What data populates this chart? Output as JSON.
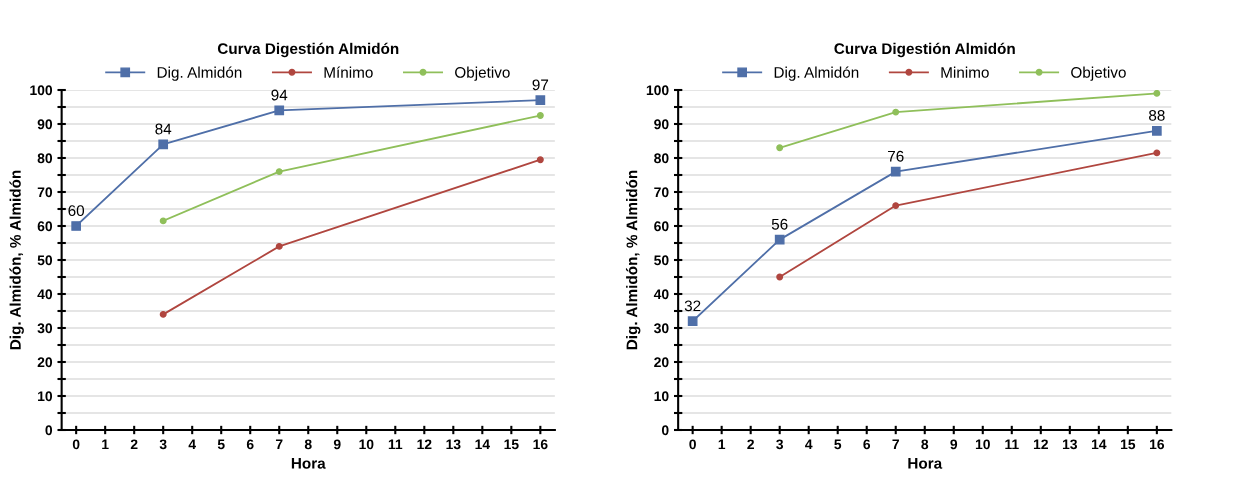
{
  "chart_data": [
    {
      "type": "line",
      "title": "Curva Digestión Almidón",
      "xlabel": "Hora",
      "ylabel": "Dig. Almidón, % Almidón",
      "categories": [
        "0",
        "1",
        "2",
        "3",
        "4",
        "5",
        "6",
        "7",
        "8",
        "9",
        "10",
        "11",
        "12",
        "13",
        "14",
        "15",
        "16"
      ],
      "ylim": [
        0,
        100
      ],
      "yticks": [
        0,
        {
          "value": 5,
          "label": null
        },
        10,
        {
          "value": 15,
          "label": null
        },
        20,
        {
          "value": 25,
          "label": null
        },
        30,
        {
          "value": 35,
          "label": null
        },
        40,
        {
          "value": 45,
          "label": null
        },
        50,
        {
          "value": 55,
          "label": null
        },
        60,
        {
          "value": 65,
          "label": null
        },
        70,
        {
          "value": 75,
          "label": null
        },
        80,
        {
          "value": 85,
          "label": null
        },
        90,
        {
          "value": 95,
          "label": null
        },
        100
      ],
      "grid": "y",
      "legend": "top",
      "series": [
        {
          "name": "Dig. Almidón",
          "color": "#4f6fa8",
          "marker": "square",
          "values": [
            60,
            null,
            null,
            84,
            null,
            null,
            null,
            94,
            null,
            null,
            null,
            null,
            null,
            null,
            null,
            null,
            97
          ],
          "value_labels": [
            "60",
            null,
            null,
            "84",
            null,
            null,
            null,
            "94",
            null,
            null,
            null,
            null,
            null,
            null,
            null,
            null,
            "97"
          ]
        },
        {
          "name": "Mínimo",
          "color": "#b0463f",
          "marker": "circle",
          "values": [
            null,
            null,
            null,
            34,
            null,
            null,
            null,
            54,
            null,
            null,
            null,
            null,
            null,
            null,
            null,
            null,
            79.5
          ]
        },
        {
          "name": "Objetivo",
          "color": "#8fbf5a",
          "marker": "circle",
          "values": [
            null,
            null,
            null,
            61.5,
            null,
            null,
            null,
            76,
            null,
            null,
            null,
            null,
            null,
            null,
            null,
            null,
            92.5
          ]
        }
      ]
    },
    {
      "type": "line",
      "title": "Curva Digestión Almidón",
      "xlabel": "Hora",
      "ylabel": "Dig. Almidón, % Almidón",
      "categories": [
        "0",
        "1",
        "2",
        "3",
        "4",
        "5",
        "6",
        "7",
        "8",
        "9",
        "10",
        "11",
        "12",
        "13",
        "14",
        "15",
        "16"
      ],
      "ylim": [
        0,
        100
      ],
      "yticks": [
        0,
        {
          "value": 5,
          "label": null
        },
        10,
        {
          "value": 15,
          "label": null
        },
        20,
        {
          "value": 25,
          "label": null
        },
        30,
        {
          "value": 35,
          "label": null
        },
        40,
        {
          "value": 45,
          "label": null
        },
        50,
        {
          "value": 55,
          "label": null
        },
        60,
        {
          "value": 65,
          "label": null
        },
        70,
        {
          "value": 75,
          "label": null
        },
        80,
        {
          "value": 85,
          "label": null
        },
        90,
        {
          "value": 95,
          "label": null
        },
        100
      ],
      "grid": "y",
      "legend": "top",
      "series": [
        {
          "name": "Dig. Almidón",
          "color": "#4f6fa8",
          "marker": "square",
          "values": [
            32,
            null,
            null,
            56,
            null,
            null,
            null,
            76,
            null,
            null,
            null,
            null,
            null,
            null,
            null,
            null,
            88
          ],
          "value_labels": [
            "32",
            null,
            null,
            "56",
            null,
            null,
            null,
            "76",
            null,
            null,
            null,
            null,
            null,
            null,
            null,
            null,
            "88"
          ]
        },
        {
          "name": "Minimo",
          "color": "#b0463f",
          "marker": "circle",
          "values": [
            null,
            null,
            null,
            45,
            null,
            null,
            null,
            66,
            null,
            null,
            null,
            null,
            null,
            null,
            null,
            null,
            81.5
          ]
        },
        {
          "name": "Objetivo",
          "color": "#8fbf5a",
          "marker": "circle",
          "values": [
            null,
            null,
            null,
            83,
            null,
            null,
            null,
            93.5,
            null,
            null,
            null,
            null,
            null,
            null,
            null,
            null,
            99
          ]
        }
      ]
    }
  ]
}
